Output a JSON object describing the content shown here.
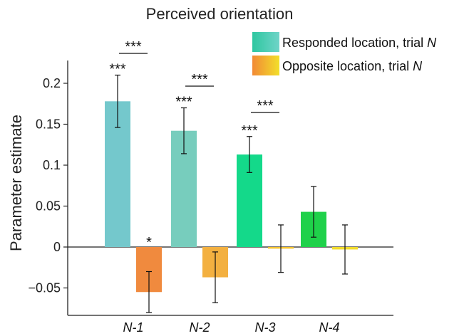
{
  "chart_data": {
    "type": "bar",
    "title": "Perceived orientation",
    "xlabel": "",
    "ylabel": "Parameter estimate",
    "ylim": [
      -0.08,
      0.23
    ],
    "yticks": [
      -0.05,
      0,
      0.05,
      0.1,
      0.15,
      0.2
    ],
    "ytick_labels": [
      "−0.05",
      "0",
      "0.05",
      "0.1",
      "0.15",
      "0.2"
    ],
    "categories": [
      "N-1",
      "N-2",
      "N-3",
      "N-4"
    ],
    "series": [
      {
        "name": "Responded location, trial N",
        "values": [
          0.178,
          0.142,
          0.113,
          0.043
        ],
        "errors": [
          0.032,
          0.028,
          0.022,
          0.031
        ],
        "colors": [
          "#74c8cc",
          "#77cdbd",
          "#14d98a",
          "#1fd14a"
        ],
        "significance": [
          "***",
          "***",
          "***",
          ""
        ]
      },
      {
        "name": "Opposite location, trial N",
        "values": [
          -0.055,
          -0.037,
          -0.002,
          -0.003
        ],
        "errors": [
          0.025,
          0.031,
          0.029,
          0.03
        ],
        "colors": [
          "#f08a3e",
          "#f3b040",
          "#f5c430",
          "#f2dc2c"
        ],
        "significance": [
          "*",
          "",
          "",
          ""
        ]
      }
    ],
    "pair_significance": [
      "***",
      "***",
      "***",
      ""
    ],
    "legend_placement": "top-right",
    "grid": false
  },
  "legend": {
    "items": [
      {
        "prefix": "Responded location, trial ",
        "suffix": "N",
        "colors": [
          "#2ec7a0",
          "#6fd4c8"
        ]
      },
      {
        "prefix": "Opposite location, trial ",
        "suffix": "N",
        "colors": [
          "#f28a35",
          "#f2df2a"
        ]
      }
    ]
  }
}
